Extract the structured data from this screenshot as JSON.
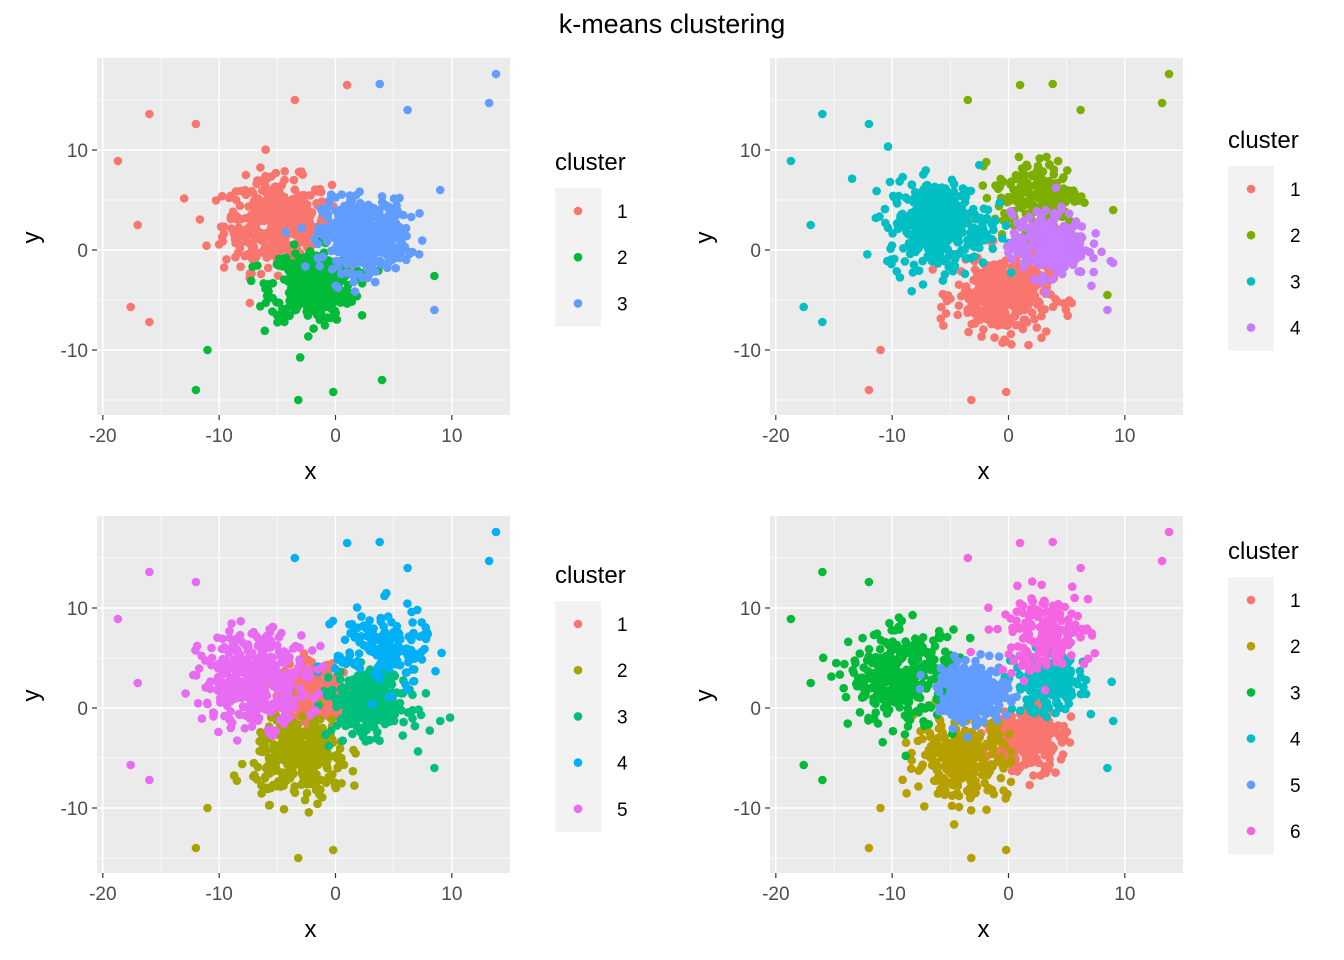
{
  "figure": {
    "title": "k-means clustering"
  },
  "chart_data": [
    {
      "type": "scatter",
      "xlabel": "x",
      "ylabel": "y",
      "xlim": [
        -20.5,
        15
      ],
      "ylim": [
        -16.5,
        19.2
      ],
      "xticks": [
        -20,
        -10,
        0,
        10
      ],
      "yticks": [
        -10,
        0,
        10
      ],
      "x_tick_labels": [
        "-20",
        "-10",
        "0",
        "10"
      ],
      "y_tick_labels": [
        "-10",
        "0",
        "10"
      ],
      "legend": {
        "title": "cluster",
        "position": "right"
      },
      "series": [
        {
          "name": "1",
          "color": "#F8766D",
          "center": [
            -5,
            2.5
          ],
          "spread": 2.3,
          "count": 420
        },
        {
          "name": "2",
          "color": "#00BA38",
          "center": [
            -2,
            -3.5
          ],
          "spread": 1.8,
          "count": 360
        },
        {
          "name": "3",
          "color": "#619CFF",
          "center": [
            2.5,
            1.5
          ],
          "spread": 1.8,
          "count": 420
        }
      ],
      "outliers": [
        {
          "series": 0,
          "x": -18.7,
          "y": 8.9
        },
        {
          "series": 0,
          "x": -16,
          "y": 13.6
        },
        {
          "series": 0,
          "x": -17.6,
          "y": -5.7
        },
        {
          "series": 0,
          "x": -12,
          "y": 12.6
        },
        {
          "series": 0,
          "x": -3.5,
          "y": 15
        },
        {
          "series": 0,
          "x": 1,
          "y": 16.5
        },
        {
          "series": 0,
          "x": -16,
          "y": -7.2
        },
        {
          "series": 0,
          "x": -17,
          "y": 2.5
        },
        {
          "series": 1,
          "x": -12,
          "y": -14
        },
        {
          "series": 1,
          "x": -3.2,
          "y": -15
        },
        {
          "series": 1,
          "x": -0.2,
          "y": -14.2
        },
        {
          "series": 1,
          "x": -11,
          "y": -10
        },
        {
          "series": 1,
          "x": 8.5,
          "y": -2.6
        },
        {
          "series": 1,
          "x": 4,
          "y": -13
        },
        {
          "series": 2,
          "x": 3.8,
          "y": 16.6
        },
        {
          "series": 2,
          "x": 13.8,
          "y": 17.6
        },
        {
          "series": 2,
          "x": 13.2,
          "y": 14.7
        },
        {
          "series": 2,
          "x": 6.2,
          "y": 14
        },
        {
          "series": 2,
          "x": 8.5,
          "y": -6
        },
        {
          "series": 2,
          "x": 9,
          "y": 6
        }
      ]
    },
    {
      "type": "scatter",
      "xlabel": "x",
      "ylabel": "y",
      "xlim": [
        -20.5,
        15
      ],
      "ylim": [
        -16.5,
        19.2
      ],
      "xticks": [
        -20,
        -10,
        0,
        10
      ],
      "yticks": [
        -10,
        0,
        10
      ],
      "x_tick_labels": [
        "-20",
        "-10",
        "0",
        "10"
      ],
      "y_tick_labels": [
        "-10",
        "0",
        "10"
      ],
      "legend": {
        "title": "cluster",
        "position": "right"
      },
      "series": [
        {
          "name": "1",
          "color": "#F8766D",
          "center": [
            -0.5,
            -4.5
          ],
          "spread": 2,
          "count": 360
        },
        {
          "name": "2",
          "color": "#7CAE00",
          "center": [
            2.5,
            5.5
          ],
          "spread": 1.8,
          "count": 200
        },
        {
          "name": "3",
          "color": "#00BFC4",
          "center": [
            -6,
            2.5
          ],
          "spread": 2.2,
          "count": 380
        },
        {
          "name": "4",
          "color": "#C77CFF",
          "center": [
            3.5,
            0.5
          ],
          "spread": 1.6,
          "count": 300
        }
      ],
      "outliers": [
        {
          "series": 2,
          "x": -18.7,
          "y": 8.9
        },
        {
          "series": 2,
          "x": -16,
          "y": 13.6
        },
        {
          "series": 2,
          "x": -17.6,
          "y": -5.7
        },
        {
          "series": 2,
          "x": -12,
          "y": 12.6
        },
        {
          "series": 2,
          "x": -16,
          "y": -7.2
        },
        {
          "series": 2,
          "x": -17,
          "y": 2.5
        },
        {
          "series": 0,
          "x": -12,
          "y": -14
        },
        {
          "series": 0,
          "x": -3.2,
          "y": -15
        },
        {
          "series": 0,
          "x": -0.2,
          "y": -14.2
        },
        {
          "series": 0,
          "x": -11,
          "y": -10
        },
        {
          "series": 1,
          "x": -3.5,
          "y": 15
        },
        {
          "series": 1,
          "x": 1,
          "y": 16.5
        },
        {
          "series": 1,
          "x": 3.8,
          "y": 16.6
        },
        {
          "series": 1,
          "x": 13.8,
          "y": 17.6
        },
        {
          "series": 1,
          "x": 13.2,
          "y": 14.7
        },
        {
          "series": 1,
          "x": 6.2,
          "y": 14
        },
        {
          "series": 1,
          "x": 8.5,
          "y": -4.5
        },
        {
          "series": 3,
          "x": 8.5,
          "y": -6
        },
        {
          "series": 3,
          "x": 9,
          "y": -1.3
        },
        {
          "series": 1,
          "x": 9,
          "y": 4
        }
      ]
    },
    {
      "type": "scatter",
      "xlabel": "x",
      "ylabel": "y",
      "xlim": [
        -20.5,
        15
      ],
      "ylim": [
        -16.5,
        19.2
      ],
      "xticks": [
        -20,
        -10,
        0,
        10
      ],
      "yticks": [
        -10,
        0,
        10
      ],
      "x_tick_labels": [
        "-20",
        "-10",
        "0",
        "10"
      ],
      "y_tick_labels": [
        "-10",
        "0",
        "10"
      ],
      "legend": {
        "title": "cluster",
        "position": "right"
      },
      "series": [
        {
          "name": "1",
          "color": "#F8766D",
          "center": [
            -2,
            1.5
          ],
          "spread": 1.6,
          "count": 260
        },
        {
          "name": "2",
          "color": "#A3A500",
          "center": [
            -3,
            -5
          ],
          "spread": 2,
          "count": 320
        },
        {
          "name": "3",
          "color": "#00BF7D",
          "center": [
            3,
            0.5
          ],
          "spread": 1.6,
          "count": 320
        },
        {
          "name": "4",
          "color": "#00B0F6",
          "center": [
            4,
            6
          ],
          "spread": 2,
          "count": 160
        },
        {
          "name": "5",
          "color": "#E76BF3",
          "center": [
            -7,
            3
          ],
          "spread": 2.3,
          "count": 360
        }
      ],
      "outliers": [
        {
          "series": 4,
          "x": -18.7,
          "y": 8.9
        },
        {
          "series": 4,
          "x": -16,
          "y": 13.6
        },
        {
          "series": 4,
          "x": -17.6,
          "y": -5.7
        },
        {
          "series": 4,
          "x": -12,
          "y": 12.6
        },
        {
          "series": 4,
          "x": -16,
          "y": -7.2
        },
        {
          "series": 4,
          "x": -17,
          "y": 2.5
        },
        {
          "series": 1,
          "x": -12,
          "y": -14
        },
        {
          "series": 1,
          "x": -3.2,
          "y": -15
        },
        {
          "series": 1,
          "x": -0.2,
          "y": -14.2
        },
        {
          "series": 1,
          "x": -11,
          "y": -10
        },
        {
          "series": 3,
          "x": -3.5,
          "y": 15
        },
        {
          "series": 3,
          "x": 1,
          "y": 16.5
        },
        {
          "series": 3,
          "x": 3.8,
          "y": 16.6
        },
        {
          "series": 3,
          "x": 13.8,
          "y": 17.6
        },
        {
          "series": 3,
          "x": 13.2,
          "y": 14.7
        },
        {
          "series": 3,
          "x": 6.2,
          "y": 14
        },
        {
          "series": 2,
          "x": 8.5,
          "y": -6
        },
        {
          "series": 2,
          "x": 9,
          "y": -1.3
        }
      ]
    },
    {
      "type": "scatter",
      "xlabel": "x",
      "ylabel": "y",
      "xlim": [
        -20.5,
        15
      ],
      "ylim": [
        -16.5,
        19.2
      ],
      "xticks": [
        -20,
        -10,
        0,
        10
      ],
      "yticks": [
        -10,
        0,
        10
      ],
      "x_tick_labels": [
        "-20",
        "-10",
        "0",
        "10"
      ],
      "y_tick_labels": [
        "-10",
        "0",
        "10"
      ],
      "legend": {
        "title": "cluster",
        "position": "right"
      },
      "series": [
        {
          "name": "1",
          "color": "#F8766D",
          "center": [
            1.5,
            -3
          ],
          "spread": 1.6,
          "count": 260
        },
        {
          "name": "2",
          "color": "#B79F00",
          "center": [
            -4,
            -5
          ],
          "spread": 2,
          "count": 300
        },
        {
          "name": "3",
          "color": "#00BA38",
          "center": [
            -9,
            3
          ],
          "spread": 2.3,
          "count": 330
        },
        {
          "name": "4",
          "color": "#00BFC4",
          "center": [
            3.5,
            2.5
          ],
          "spread": 1.5,
          "count": 220
        },
        {
          "name": "5",
          "color": "#619CFF",
          "center": [
            -3,
            1.5
          ],
          "spread": 1.5,
          "count": 260
        },
        {
          "name": "6",
          "color": "#F564E3",
          "center": [
            3,
            7.5
          ],
          "spread": 2,
          "count": 160
        }
      ],
      "outliers": [
        {
          "series": 2,
          "x": -18.7,
          "y": 8.9
        },
        {
          "series": 2,
          "x": -16,
          "y": 13.6
        },
        {
          "series": 2,
          "x": -17.6,
          "y": -5.7
        },
        {
          "series": 2,
          "x": -12,
          "y": 12.6
        },
        {
          "series": 2,
          "x": -16,
          "y": -7.2
        },
        {
          "series": 2,
          "x": -17,
          "y": 2.5
        },
        {
          "series": 1,
          "x": -12,
          "y": -14
        },
        {
          "series": 1,
          "x": -3.2,
          "y": -15
        },
        {
          "series": 1,
          "x": -0.2,
          "y": -14.2
        },
        {
          "series": 1,
          "x": -11,
          "y": -10
        },
        {
          "series": 5,
          "x": -3.5,
          "y": 15
        },
        {
          "series": 5,
          "x": 1,
          "y": 16.5
        },
        {
          "series": 5,
          "x": 3.8,
          "y": 16.6
        },
        {
          "series": 5,
          "x": 13.8,
          "y": 17.6
        },
        {
          "series": 5,
          "x": 13.2,
          "y": 14.7
        },
        {
          "series": 5,
          "x": 6.2,
          "y": 14
        },
        {
          "series": 3,
          "x": 8.5,
          "y": -6
        },
        {
          "series": 3,
          "x": 9,
          "y": -1.3
        }
      ]
    }
  ]
}
